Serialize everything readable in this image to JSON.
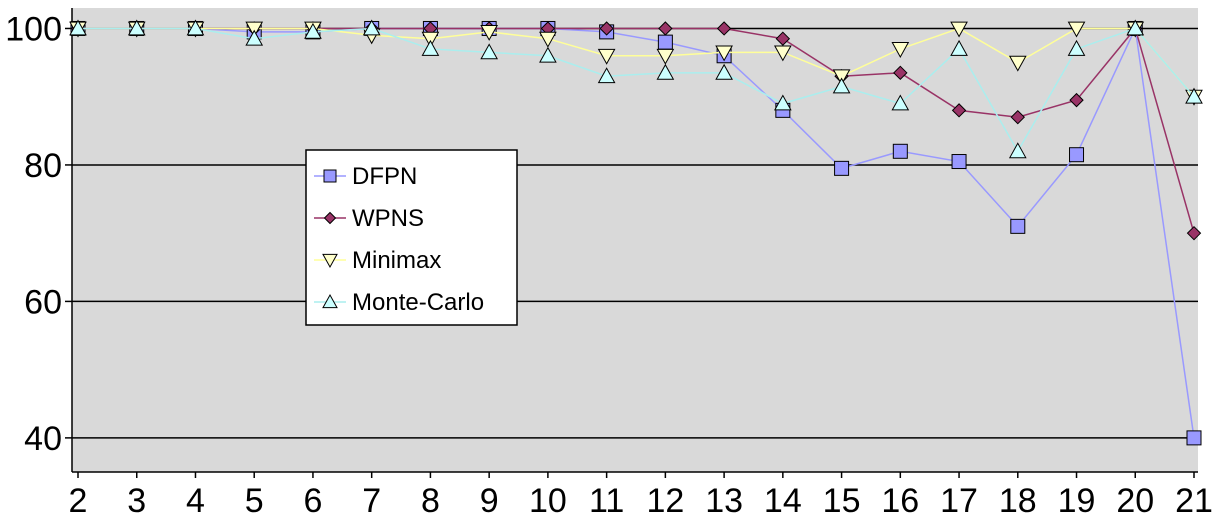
{
  "chart_data": {
    "type": "line",
    "title": "",
    "xlabel": "",
    "ylabel": "",
    "x": [
      2,
      3,
      4,
      5,
      6,
      7,
      8,
      9,
      10,
      11,
      12,
      13,
      14,
      15,
      16,
      17,
      18,
      19,
      20,
      21
    ],
    "ylim": [
      35,
      103
    ],
    "yticks": [
      40,
      60,
      80,
      100
    ],
    "grid": true,
    "legend_position": "center-left",
    "plot_background": "#d9d9d9",
    "series": [
      {
        "name": "DFPN",
        "marker": "square",
        "line_color": "#9999ff",
        "fill_color": "#9999ff",
        "values": [
          100,
          100,
          100,
          99.5,
          99.5,
          100,
          100,
          100,
          100,
          99.5,
          98,
          96,
          88,
          79.5,
          82,
          80.5,
          71,
          81.5,
          100,
          40
        ]
      },
      {
        "name": "WPNS",
        "marker": "diamond",
        "line_color": "#993366",
        "fill_color": "#993366",
        "values": [
          100,
          100,
          100,
          100,
          100,
          100,
          100,
          100,
          100,
          100,
          100,
          100,
          98.5,
          93,
          93.5,
          88,
          87,
          89.5,
          100,
          70
        ]
      },
      {
        "name": "Minimax",
        "marker": "triangle-down",
        "line_color": "#ffff99",
        "fill_color": "#ffffcc",
        "values": [
          100,
          100,
          100,
          100,
          100,
          99,
          98.5,
          99.5,
          98.5,
          96,
          96,
          96.5,
          96.5,
          93,
          97,
          100,
          95,
          100,
          100,
          90
        ]
      },
      {
        "name": "Monte-Carlo",
        "marker": "triangle-up",
        "line_color": "#aaeeee",
        "fill_color": "#ccffff",
        "values": [
          100,
          100,
          100,
          98.5,
          99.5,
          100,
          97,
          96.5,
          96,
          93,
          93.5,
          93.5,
          89,
          91.5,
          89,
          97,
          82,
          97,
          100,
          90
        ]
      }
    ]
  }
}
